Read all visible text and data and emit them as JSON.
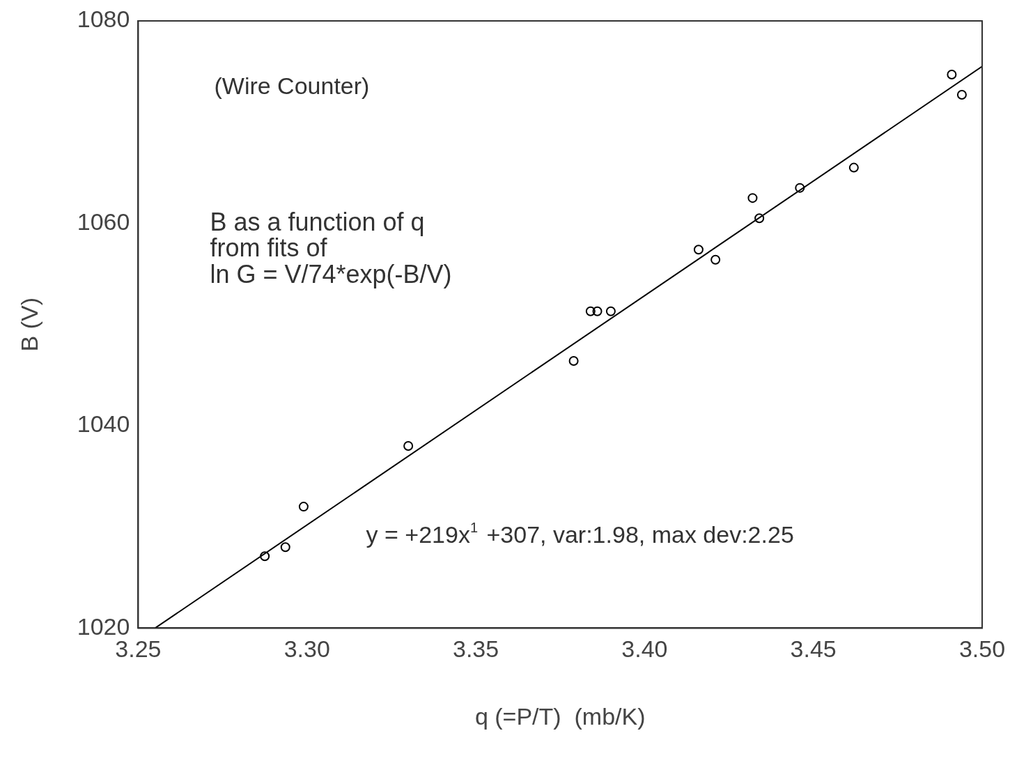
{
  "chart_data": {
    "type": "scatter",
    "xlabel": "q (=P/T)  (mb/K)",
    "ylabel": "B (V)",
    "xlim": [
      3.25,
      3.5
    ],
    "xticks": [
      {
        "value": 3.25,
        "label": "3.25"
      },
      {
        "value": 3.3,
        "label": "3.30"
      },
      {
        "value": 3.35,
        "label": "3.35"
      },
      {
        "value": 3.4,
        "label": "3.40"
      },
      {
        "value": 3.45,
        "label": "3.45"
      },
      {
        "value": 3.5,
        "label": "3.50"
      }
    ],
    "ylim": [
      1020,
      1080
    ],
    "yticks": [
      1020,
      1040,
      1060,
      1080
    ],
    "grid": false,
    "legend": false,
    "marker": "circle",
    "annotations": [
      "(Wire Counter)",
      "B as a function of q\nfrom fits of\nln G = V/74*exp(-B/V)",
      "y = +219x$^{1}$ +307, var:1.98, max dev:2.25"
    ],
    "series": [
      {
        "color": "#000000",
        "x": [
          3.2875,
          3.2936,
          3.299,
          3.33,
          3.379,
          3.384,
          3.386,
          3.39,
          3.416,
          3.421,
          3.432,
          3.434,
          3.446,
          3.462,
          3.491,
          3.494
        ],
        "values": [
          1027.1,
          1028.0,
          1032.0,
          1038.0,
          1046.4,
          1051.3,
          1051.3,
          1051.3,
          1057.4,
          1056.4,
          1062.5,
          1060.5,
          1063.5,
          1065.5,
          1074.7,
          1072.7
        ]
      },
      {
        "type": "line",
        "color": "#000000",
        "line_style": "solid",
        "marker": "none",
        "x": [
          3.255,
          3.5
        ],
        "values": [
          1020,
          1075.5
        ]
      }
    ]
  }
}
